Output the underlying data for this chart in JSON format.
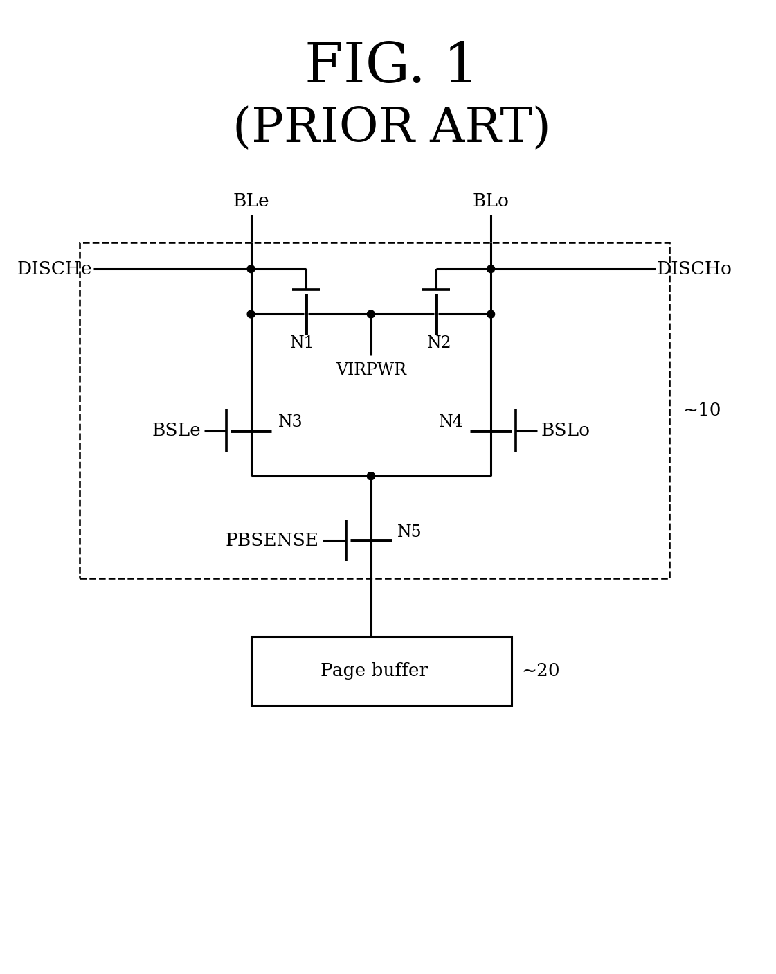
{
  "title_line1": "FIG. 1",
  "title_line2": "(PRIOR ART)",
  "bg_color": "#ffffff",
  "line_color": "#000000",
  "lw": 2.2,
  "dot_r": 0.055,
  "label_BLe": "BLe",
  "label_BLo": "BLo",
  "label_DISCHe": "DISCHe",
  "label_DISCHo": "DISCHo",
  "label_N1": "N1",
  "label_N2": "N2",
  "label_VIRPWR": "VIRPWR",
  "label_N3": "N3",
  "label_N4": "N4",
  "label_BSLe": "BSLe",
  "label_BSLo": "BSLo",
  "label_N5": "N5",
  "label_PBSENSE": "PBSENSE",
  "label_page_buffer": "Page buffer",
  "label_10": "~10",
  "label_20": "~20",
  "font_title1": 58,
  "font_title2": 50,
  "font_label": 19,
  "font_small": 17
}
